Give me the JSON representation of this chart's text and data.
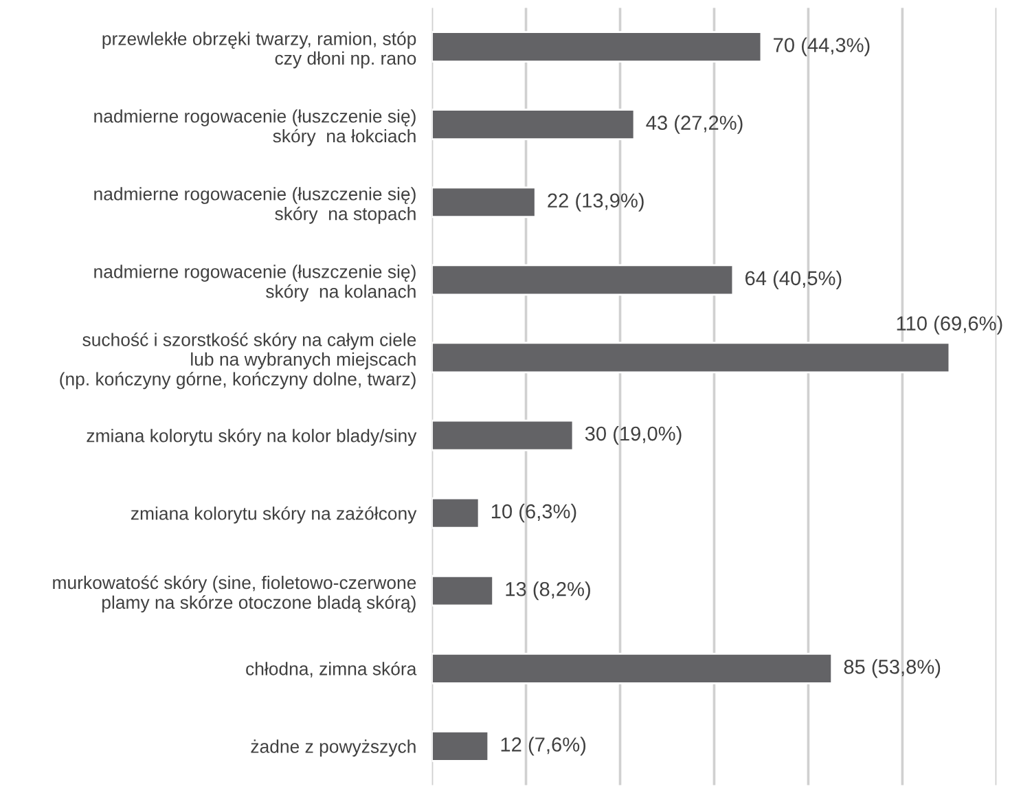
{
  "chart_data": {
    "type": "bar",
    "orientation": "horizontal",
    "categories": [
      "przewlekłe obrzęki twarzy, ramion, stóp\nczy dłoni np. rano",
      "nadmierne rogowacenie (łuszczenie się)\nskóry  na łokciach",
      "nadmierne rogowacenie (łuszczenie się)\nskóry  na stopach",
      "nadmierne rogowacenie (łuszczenie się)\nskóry  na kolanach",
      "suchość i szorstkość skóry na całym ciele\nlub na wybranych miejscach\n(np. kończyny górne, kończyny dolne, twarz)",
      "zmiana kolorytu skóry na kolor blady/siny",
      "zmiana kolorytu skóry na zażółcony",
      "murkowatość skóry (sine, fioletowo-czerwone\nplamy na skórze otoczone bladą skórą)",
      "chłodna, zimna skóra",
      "żadne z powyższych"
    ],
    "values": [
      70,
      43,
      22,
      64,
      110,
      30,
      10,
      13,
      85,
      12
    ],
    "value_labels": [
      "70 (44,3%)",
      "43 (27,2%)",
      "22 (13,9%)",
      "64 (40,5%)",
      "110 (69,6%)",
      "30 (19,0%)",
      "10 (6,3%)",
      "13 (8,2%)",
      "85 (53,8%)",
      "12 (7,6%)"
    ],
    "color": "#636366",
    "xlim": [
      0,
      120
    ],
    "xticks": [
      {
        "value": 0,
        "label": null
      },
      {
        "value": 20,
        "label": null
      },
      {
        "value": 40,
        "label": null
      },
      {
        "value": 60,
        "label": null
      },
      {
        "value": 80,
        "label": null
      },
      {
        "value": 100,
        "label": null
      },
      {
        "value": 120,
        "label": null
      }
    ],
    "grid": "x",
    "tick_labels": "y"
  }
}
